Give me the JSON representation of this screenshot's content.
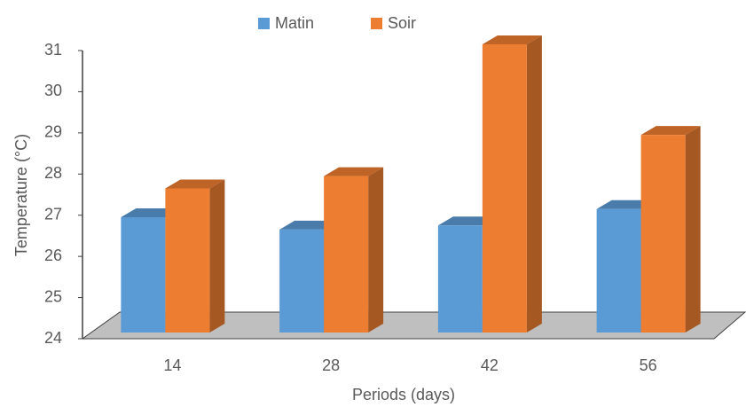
{
  "chart_data": {
    "type": "bar",
    "x_label": "Periods (days)",
    "y_label": "Temperature (°C)",
    "categories": [
      "14",
      "28",
      "42",
      "56"
    ],
    "series": [
      {
        "name": "Matin",
        "color": "#5b9bd5",
        "values": [
          26.8,
          26.5,
          26.6,
          27.0
        ]
      },
      {
        "name": "Soir",
        "color": "#ed7d31",
        "values": [
          27.5,
          27.8,
          31.0,
          28.8
        ]
      }
    ],
    "ylim": [
      24,
      31
    ],
    "yticks": [
      24,
      25,
      26,
      27,
      28,
      29,
      30,
      31
    ],
    "legend": "top"
  }
}
